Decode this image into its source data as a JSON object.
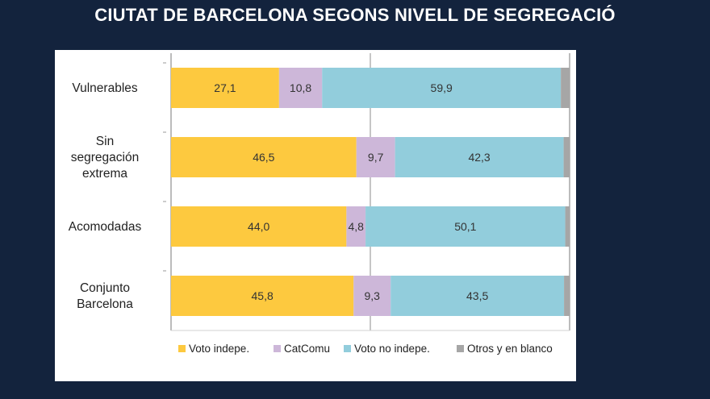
{
  "page": {
    "title": "CIUTAT DE BARCELONA SEGONS NIVELL DE SEGREGACIÓ"
  },
  "chart_data": {
    "type": "bar",
    "orientation": "horizontal",
    "stacked": true,
    "categories": [
      [
        "Vulnerables"
      ],
      [
        "Sin",
        "segregación",
        "extrema"
      ],
      [
        "Acomodadas"
      ],
      [
        "Conjunto",
        "Barcelona"
      ]
    ],
    "series": [
      {
        "name": "Voto indepe.",
        "color": "#fdc93f",
        "values": [
          27.1,
          46.5,
          44.0,
          45.8
        ],
        "labels": [
          "27,1",
          "46,5",
          "44,0",
          "45,8"
        ]
      },
      {
        "name": "CatComu",
        "color": "#cdb7d9",
        "values": [
          10.8,
          9.7,
          4.8,
          9.3
        ],
        "labels": [
          "10,8",
          "9,7",
          "4,8",
          "9,3"
        ]
      },
      {
        "name": "Voto no indepe.",
        "color": "#92cddc",
        "values": [
          59.9,
          42.3,
          50.1,
          43.5
        ],
        "labels": [
          "59,9",
          "42,3",
          "50,1",
          "43,5"
        ]
      },
      {
        "name": "Otros y en blanco",
        "color": "#a6a6a6",
        "values": [
          2.2,
          1.5,
          1.1,
          1.4
        ],
        "labels": [
          "",
          "",
          "",
          ""
        ]
      }
    ],
    "xlim": [
      0,
      100
    ],
    "grid": true,
    "legend": "bottom",
    "xlabel": "",
    "ylabel": ""
  }
}
